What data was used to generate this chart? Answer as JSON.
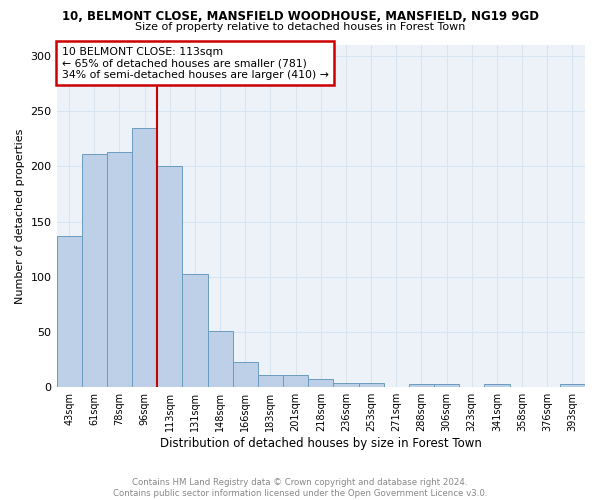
{
  "title1": "10, BELMONT CLOSE, MANSFIELD WOODHOUSE, MANSFIELD, NG19 9GD",
  "title2": "Size of property relative to detached houses in Forest Town",
  "xlabel": "Distribution of detached houses by size in Forest Town",
  "ylabel": "Number of detached properties",
  "footer": "Contains HM Land Registry data © Crown copyright and database right 2024.\nContains public sector information licensed under the Open Government Licence v3.0.",
  "bin_labels": [
    "43sqm",
    "61sqm",
    "78sqm",
    "96sqm",
    "113sqm",
    "131sqm",
    "148sqm",
    "166sqm",
    "183sqm",
    "201sqm",
    "218sqm",
    "236sqm",
    "253sqm",
    "271sqm",
    "288sqm",
    "306sqm",
    "323sqm",
    "341sqm",
    "358sqm",
    "376sqm",
    "393sqm"
  ],
  "bar_heights": [
    137,
    211,
    213,
    235,
    200,
    103,
    51,
    23,
    11,
    11,
    7,
    4,
    4,
    0,
    3,
    3,
    0,
    3,
    0,
    0,
    3
  ],
  "property_line_x": 4,
  "annotation_line1": "10 BELMONT CLOSE: 113sqm",
  "annotation_line2": "← 65% of detached houses are smaller (781)",
  "annotation_line3": "34% of semi-detached houses are larger (410) →",
  "bar_color": "#bdd0e8",
  "bar_edge_color": "#6a9cc0",
  "line_color": "#cc0000",
  "annotation_box_edgecolor": "#cc0000",
  "grid_color": "#d8e4f0",
  "background_color": "#edf2f9",
  "ylim": [
    0,
    310
  ],
  "yticks": [
    0,
    50,
    100,
    150,
    200,
    250,
    300
  ]
}
